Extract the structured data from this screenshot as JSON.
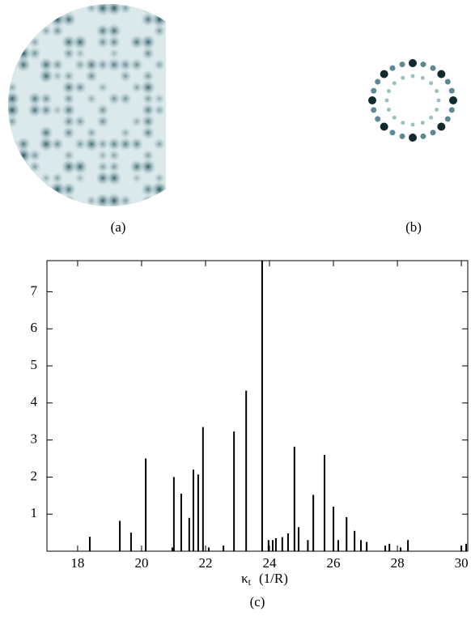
{
  "panels": [
    {
      "label": "(a)"
    },
    {
      "label": "(b)"
    }
  ],
  "chart_data": {
    "type": "bar",
    "caption": "(c)",
    "xlabel": {
      "symbol": "κ",
      "subscript": "t",
      "unit": "(1/R)"
    },
    "x": [
      18.38,
      19.32,
      19.67,
      20.13,
      20.96,
      21.01,
      21.24,
      21.49,
      21.62,
      21.77,
      21.92,
      22.1,
      22.56,
      22.89,
      23.27,
      23.77,
      23.97,
      24.1,
      24.2,
      24.4,
      24.58,
      24.78,
      24.91,
      25.2,
      25.37,
      25.72,
      26.0,
      26.15,
      26.41,
      26.66,
      26.86,
      27.04,
      27.62,
      27.75,
      28.1,
      28.33,
      30.0,
      30.15
    ],
    "values": [
      0.39,
      0.82,
      0.5,
      2.5,
      0.1,
      2.0,
      1.55,
      0.9,
      2.2,
      2.07,
      3.35,
      0.1,
      0.15,
      3.23,
      4.33,
      7.84,
      0.3,
      0.3,
      0.35,
      0.38,
      0.48,
      2.82,
      0.65,
      0.3,
      1.52,
      2.6,
      1.2,
      0.3,
      0.92,
      0.55,
      0.3,
      0.25,
      0.15,
      0.2,
      0.1,
      0.3,
      0.15,
      0.2
    ],
    "color": "#000000",
    "xlim": [
      17.04,
      30.2
    ],
    "ylim": [
      0,
      7.84
    ],
    "xticks": [
      18,
      20,
      22,
      24,
      26,
      28,
      30
    ],
    "yticks": [
      1,
      2,
      3,
      4,
      5,
      6,
      7
    ]
  }
}
